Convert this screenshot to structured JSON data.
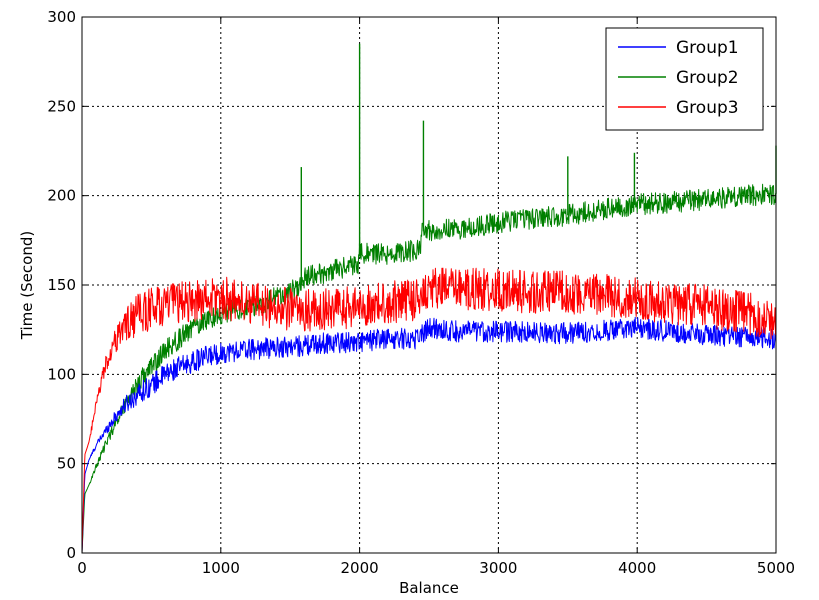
{
  "chart_data": {
    "type": "line",
    "title": "",
    "xlabel": "Balance",
    "ylabel": "Time (Second)",
    "xlim": [
      0,
      5000
    ],
    "ylim": [
      0,
      300
    ],
    "xticks": [
      0,
      1000,
      2000,
      3000,
      4000,
      5000
    ],
    "yticks": [
      0,
      50,
      100,
      150,
      200,
      250,
      300
    ],
    "xtick_labels": [
      "0",
      "1000",
      "2000",
      "3000",
      "4000",
      "5000"
    ],
    "ytick_labels": [
      "0",
      "50",
      "100",
      "150",
      "200",
      "250",
      "300"
    ],
    "grid": true,
    "grid_style": "dotted",
    "legend_position": "top-right",
    "noisy_series": true,
    "series": [
      {
        "name": "Group1",
        "color": "#0000ff",
        "noise_amplitude": 6,
        "x": [
          0,
          20,
          50,
          100,
          200,
          300,
          400,
          500,
          600,
          700,
          800,
          900,
          1000,
          1200,
          1400,
          1600,
          1800,
          2000,
          2200,
          2400,
          2500,
          2700,
          3000,
          3500,
          4000,
          4500,
          5000
        ],
        "values": [
          0,
          44,
          52,
          60,
          72,
          82,
          89,
          94,
          100,
          104,
          107,
          110,
          112,
          114,
          115,
          116,
          118,
          118,
          120,
          120,
          126,
          124,
          124,
          123,
          126,
          122,
          120
        ]
      },
      {
        "name": "Group2",
        "color": "#008000",
        "noise_amplitude": 6,
        "x": [
          0,
          20,
          50,
          100,
          200,
          300,
          400,
          500,
          600,
          700,
          800,
          900,
          1000,
          1100,
          1200,
          1300,
          1400,
          1500,
          1580,
          1600,
          1800,
          1990,
          2000,
          2010,
          2200,
          2440,
          2450,
          2600,
          2800,
          3000,
          3200,
          3500,
          3800,
          4000,
          4200,
          4500,
          4800,
          5000
        ],
        "values": [
          0,
          33,
          38,
          48,
          66,
          82,
          95,
          104,
          113,
          120,
          126,
          131,
          134,
          136,
          137,
          140,
          143,
          146,
          150,
          154,
          158,
          162,
          172,
          168,
          167,
          170,
          180,
          181,
          182,
          185,
          187,
          189,
          193,
          195,
          196,
          198,
          200,
          201
        ]
      },
      {
        "name": "Group3",
        "color": "#ff0000",
        "noise_amplitude": 12,
        "x": [
          0,
          20,
          50,
          100,
          150,
          200,
          300,
          400,
          500,
          600,
          700,
          800,
          1000,
          1200,
          1400,
          1600,
          1800,
          2000,
          2200,
          2400,
          2500,
          2800,
          3000,
          3200,
          3500,
          3800,
          4000,
          4500,
          4800,
          5000
        ],
        "values": [
          0,
          55,
          62,
          82,
          100,
          112,
          127,
          133,
          137,
          139,
          140,
          141,
          143,
          140,
          137,
          136,
          136,
          138,
          140,
          142,
          148,
          148,
          147,
          146,
          146,
          144,
          142,
          138,
          134,
          130
        ]
      }
    ],
    "spikes": [
      {
        "series": "Group2",
        "x": 1580,
        "value": 216
      },
      {
        "series": "Group2",
        "x": 2000,
        "value": 285
      },
      {
        "series": "Group2",
        "x": 2460,
        "value": 242
      },
      {
        "series": "Group2",
        "x": 3500,
        "value": 222
      },
      {
        "series": "Group2",
        "x": 3980,
        "value": 224
      },
      {
        "series": "Group2",
        "x": 5000,
        "value": 228
      }
    ]
  }
}
